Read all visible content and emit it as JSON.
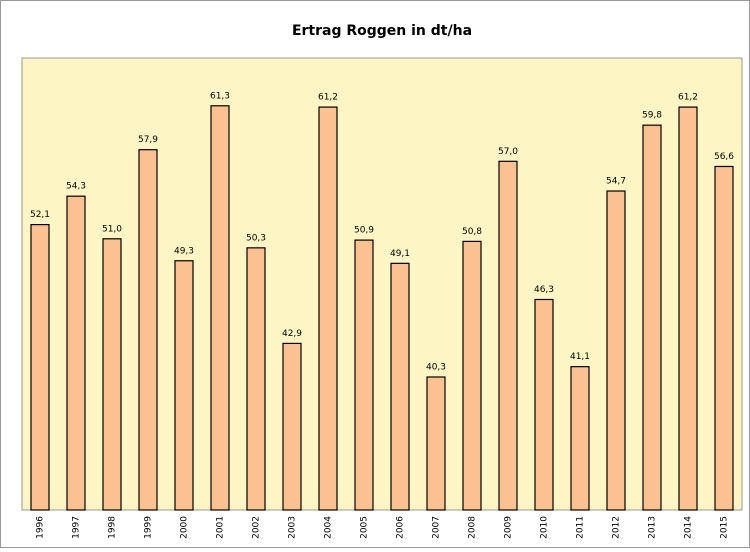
{
  "chart_data": {
    "type": "bar",
    "title": "Ertrag Roggen in dt/ha",
    "categories": [
      "1996",
      "1997",
      "1998",
      "1999",
      "2000",
      "2001",
      "2002",
      "2003",
      "2004",
      "2005",
      "2006",
      "2007",
      "2008",
      "2009",
      "2010",
      "2011",
      "2012",
      "2013",
      "2014",
      "2015"
    ],
    "values": [
      52.1,
      54.3,
      51.0,
      57.9,
      49.3,
      61.3,
      50.3,
      42.9,
      61.2,
      50.9,
      49.1,
      40.3,
      50.8,
      57.0,
      46.3,
      41.1,
      54.7,
      59.8,
      61.2,
      56.6
    ],
    "value_labels": [
      "52,1",
      "54,3",
      "51,0",
      "57,9",
      "49,3",
      "61,3",
      "50,3",
      "42,9",
      "61,2",
      "50,9",
      "49,1",
      "40,3",
      "50,8",
      "57,0",
      "46,3",
      "41,1",
      "54,7",
      "59,8",
      "61,2",
      "56,6"
    ],
    "color": "#fcc190",
    "ylim": [
      30,
      65
    ]
  }
}
